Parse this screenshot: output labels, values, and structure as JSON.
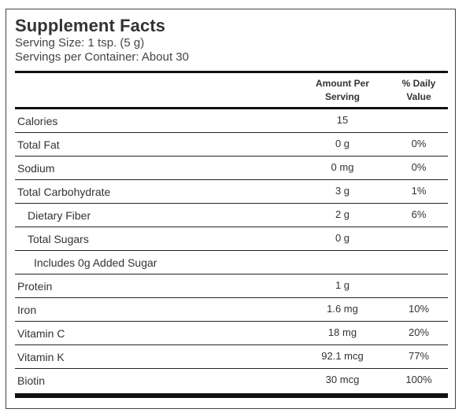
{
  "label": {
    "title": "Supplement Facts",
    "serving_size": "Serving Size: 1 tsp. (5 g)",
    "servings_per_container": "Servings per Container: About 30"
  },
  "table": {
    "header_amount_line1": "Amount Per",
    "header_amount_line2": "Serving",
    "header_dv_line1": "% Daily",
    "header_dv_line2": "Value",
    "rows": [
      {
        "name": "Calories",
        "amount": "15",
        "dv": "",
        "indent": 0
      },
      {
        "name": "Total Fat",
        "amount": "0 g",
        "dv": "0%",
        "indent": 0
      },
      {
        "name": "Sodium",
        "amount": "0 mg",
        "dv": "0%",
        "indent": 0
      },
      {
        "name": "Total Carbohydrate",
        "amount": "3 g",
        "dv": "1%",
        "indent": 0
      },
      {
        "name": "Dietary Fiber",
        "amount": "2 g",
        "dv": "6%",
        "indent": 1
      },
      {
        "name": "Total Sugars",
        "amount": "0 g",
        "dv": "",
        "indent": 1
      },
      {
        "name": "Includes 0g Added Sugar",
        "amount": "",
        "dv": "",
        "indent": 2
      },
      {
        "name": "Protein",
        "amount": "1 g",
        "dv": "",
        "indent": 0
      },
      {
        "name": "Iron",
        "amount": "1.6 mg",
        "dv": "10%",
        "indent": 0
      },
      {
        "name": "Vitamin C",
        "amount": "18 mg",
        "dv": "20%",
        "indent": 0
      },
      {
        "name": "Vitamin K",
        "amount": "92.1 mcg",
        "dv": "77%",
        "indent": 0
      },
      {
        "name": "Biotin",
        "amount": "30 mcg",
        "dv": "100%",
        "indent": 0
      }
    ]
  }
}
